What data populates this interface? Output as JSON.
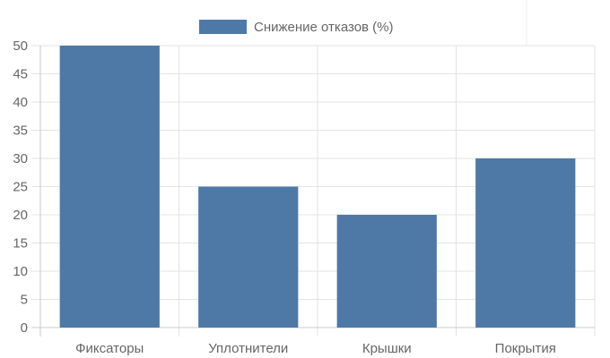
{
  "chart_data": {
    "type": "bar",
    "categories": [
      "Фиксаторы",
      "Уплотнители",
      "Крышки",
      "Покрытия"
    ],
    "series": [
      {
        "name": "Снижение отказов (%)",
        "values": [
          50,
          25,
          20,
          30
        ],
        "color": "#4e79a7"
      }
    ],
    "ylim": [
      0,
      50
    ],
    "ytick_step": 5,
    "grid": true,
    "legend_position": "top-center"
  }
}
